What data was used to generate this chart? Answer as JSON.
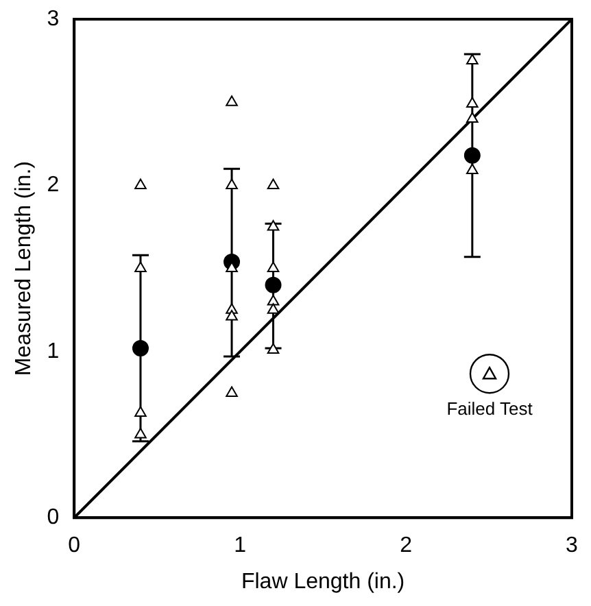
{
  "chart_data": {
    "type": "scatter",
    "xlabel": "Flaw Length (in.)",
    "ylabel": "Measured Length (in.)",
    "xlim": [
      0,
      3
    ],
    "xticks": [
      0,
      1,
      2,
      3
    ],
    "ylim": [
      0,
      3
    ],
    "yticks": [
      0,
      1,
      2,
      3
    ],
    "grid": false,
    "legend": "bottom right",
    "series": [
      {
        "name": "Failed Test",
        "marker": "triangle",
        "color": "#000000",
        "x": [
          0.4,
          0.4,
          0.4,
          0.4,
          0.95,
          0.95,
          0.95,
          0.95,
          0.95,
          0.95,
          1.2,
          1.2,
          1.2,
          1.2,
          1.2,
          1.2,
          2.4,
          2.4,
          2.4,
          2.4
        ],
        "values": [
          2.0,
          1.5,
          0.63,
          0.5,
          2.5,
          2.0,
          1.5,
          1.25,
          1.21,
          0.75,
          2.0,
          1.75,
          1.5,
          1.3,
          1.25,
          1.01,
          2.75,
          2.49,
          2.4,
          2.09
        ]
      },
      {
        "marker": "circle",
        "color": "#000000",
        "x": [
          0.4,
          0.95,
          1.2,
          2.4
        ],
        "values": [
          1.02,
          1.54,
          1.4,
          2.18
        ],
        "errors": [
          [
            0.46,
            1.58
          ],
          [
            0.97,
            2.1
          ],
          [
            1.02,
            1.77
          ],
          [
            1.57,
            2.79
          ]
        ]
      },
      {
        "type": "line",
        "marker": "none",
        "line_style": "solid",
        "color": "#000000",
        "x": [
          0,
          3
        ],
        "values": [
          0,
          3
        ]
      }
    ]
  }
}
